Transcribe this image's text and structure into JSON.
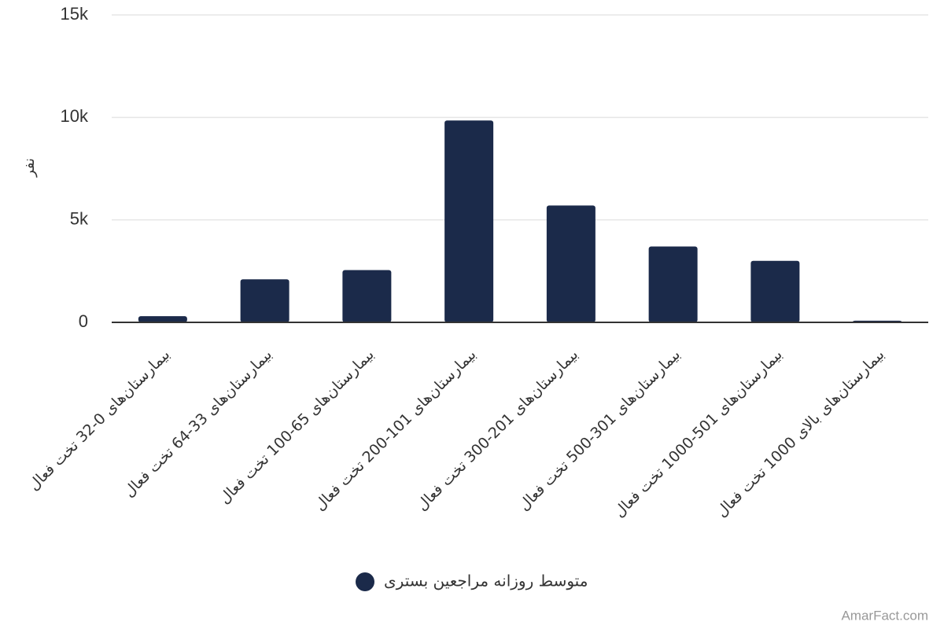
{
  "chart_data": {
    "type": "bar",
    "y_label": "نفر",
    "categories": [
      "بیمارستان‌های 0-32 تخت فعال",
      "بیمارستان‌های 33-64 تخت فعال",
      "بیمارستان‌های 65-100 تخت فعال",
      "بیمارستان‌های 101-200 تخت فعال",
      "بیمارستان‌های 201-300 تخت فعال",
      "بیمارستان‌های 301-500 تخت فعال",
      "بیمارستان‌های 501-1000 تخت فعال",
      "بیمارستان‌های بالای 1000 تخت فعال"
    ],
    "series": [
      {
        "name": "متوسط روزانه مراجعین بستری",
        "color": "#1b2a4a",
        "values": [
          300,
          2100,
          2550,
          9850,
          5700,
          3700,
          3000,
          80
        ]
      }
    ],
    "ylim": [
      0,
      15000
    ],
    "yticks": [
      0,
      {
        "value": 5000,
        "label": "5k"
      },
      {
        "value": 10000,
        "label": "10k"
      },
      {
        "value": 15000,
        "label": "15k"
      }
    ],
    "grid": true,
    "legend": "bottom",
    "credit": "AmarFact.com"
  }
}
